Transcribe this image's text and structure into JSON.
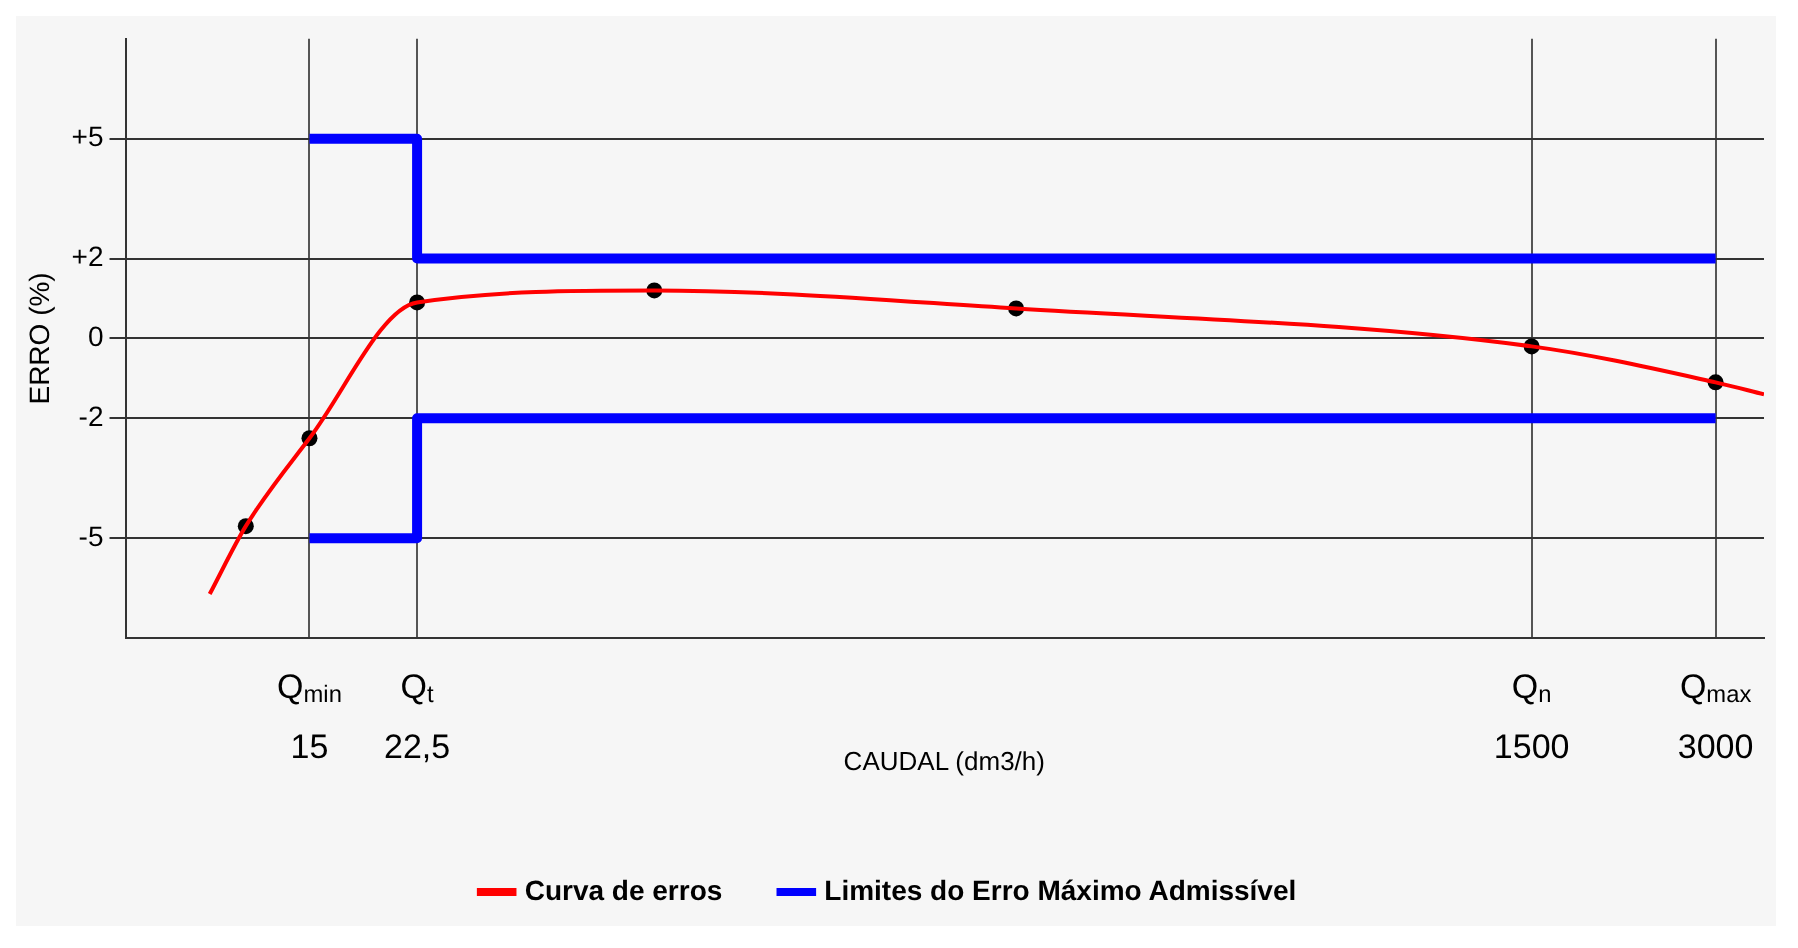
{
  "chart_data": {
    "type": "line",
    "xlabel": "CAUDAL (dm3/h)",
    "ylabel": "ERRO (%)",
    "log": "x",
    "xlim": [
      7.5,
      3600
    ],
    "xticks": [
      {
        "value": 15,
        "label": "Q$_{min}$\n15"
      },
      {
        "value": 22.5,
        "label": "Q$_{t}$\n22,5"
      },
      {
        "value": 1500,
        "label": "Q$_{n}$\n1500"
      },
      {
        "value": 3000,
        "label": "Q$_{max}$\n3000"
      }
    ],
    "ylim": [
      -7.5,
      7.5
    ],
    "yticks": [
      {
        "value": 5,
        "label": "+5"
      },
      {
        "value": 2,
        "label": "+2"
      },
      0,
      -2,
      -5
    ],
    "grid": true,
    "legend": "bottom",
    "series": [
      {
        "name": "Curva de erros",
        "type": "line",
        "color": "#ff0000",
        "marker": "none",
        "x": [
          10.3,
          11.8,
          15,
          22.5,
          55,
          215,
          1500,
          3000,
          3600
        ],
        "values": [
          -6.4,
          -4.7,
          -2.5,
          0.9,
          1.2,
          0.75,
          -0.2,
          -1.1,
          -1.4
        ]
      },
      {
        "type": "scatter",
        "color": "#000000",
        "marker": "circle",
        "x": [
          11.8,
          15,
          22.5,
          55,
          215,
          1500,
          3000
        ],
        "values": [
          -4.7,
          -2.5,
          0.9,
          1.2,
          0.75,
          -0.2,
          -1.1
        ]
      },
      {
        "name": "Limites do Erro Máximo Admissível",
        "type": "line",
        "color": "#0000ff",
        "marker": "none",
        "x": [
          15,
          22.5,
          22.5,
          3000
        ],
        "values": [
          5,
          5,
          2,
          2
        ]
      },
      {
        "type": "line",
        "color": "#0000ff",
        "marker": "none",
        "x": [
          15,
          22.5,
          22.5,
          3000
        ],
        "values": [
          -5,
          -5,
          -2,
          -2
        ]
      }
    ]
  }
}
